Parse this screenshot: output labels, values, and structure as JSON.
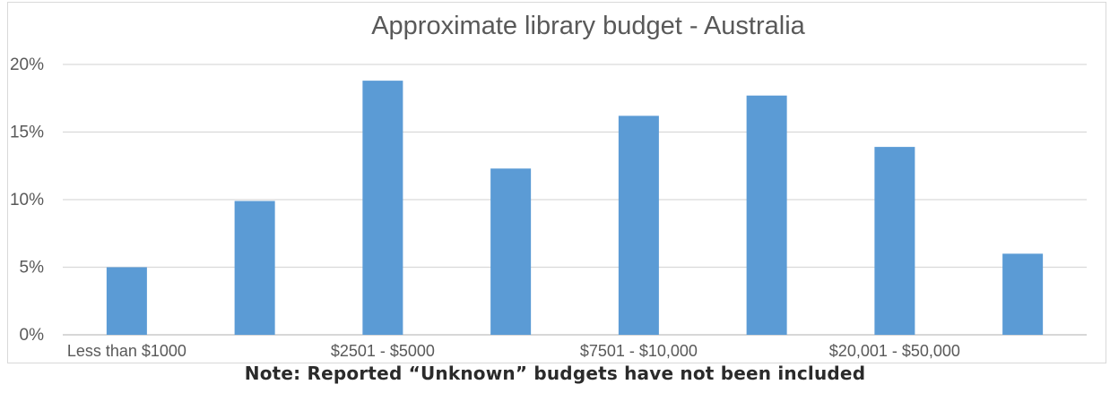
{
  "chart_data": {
    "type": "bar",
    "title": "Approximate library budget - Australia",
    "categories": [
      "Less than $1000",
      "",
      "$2501 - $5000",
      "",
      "$7501 - $10,000",
      "",
      "$20,001 - $50,000",
      ""
    ],
    "values": [
      5,
      9.9,
      18.8,
      12.3,
      16.2,
      17.7,
      13.9,
      6
    ],
    "y_ticks": [
      "0%",
      "5%",
      "10%",
      "15%",
      "20%"
    ],
    "y_tick_values": [
      0,
      5,
      10,
      15,
      20
    ],
    "ylim": [
      0,
      20
    ],
    "xlabel": "",
    "ylabel": "",
    "grid": true,
    "legend": "none",
    "bar_color": "#5b9bd5",
    "grid_color": "#d9d9d9"
  },
  "note": "Note: Reported “Unknown” budgets have not been included"
}
